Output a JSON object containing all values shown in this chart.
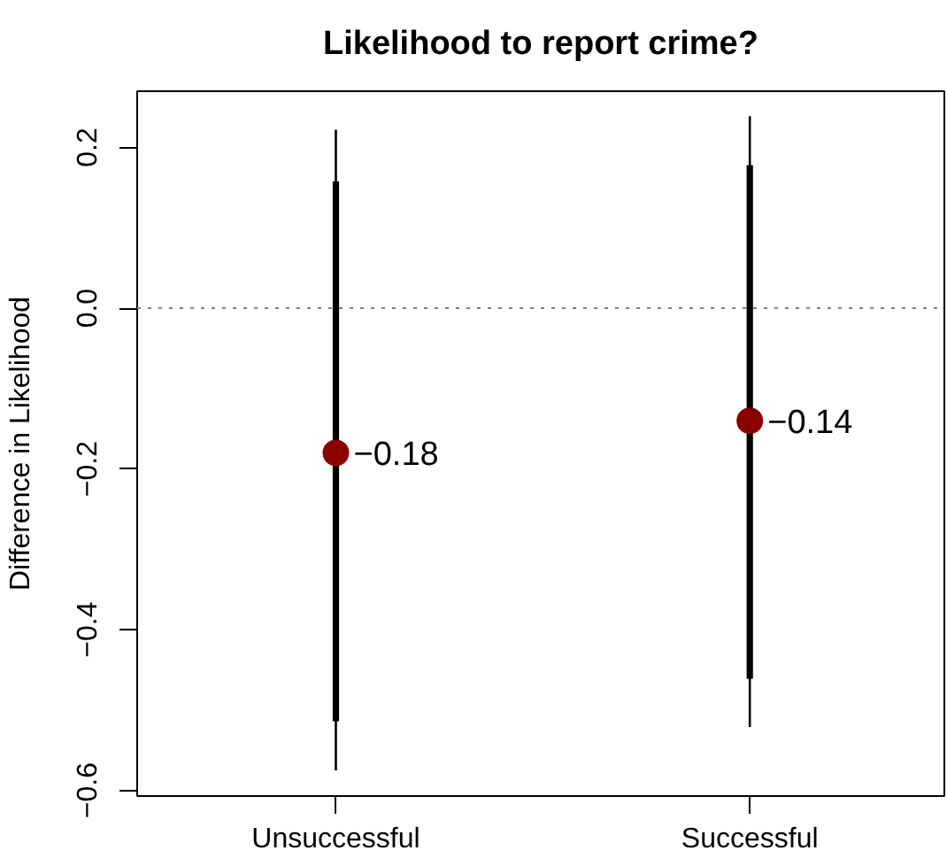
{
  "chart_data": {
    "type": "scatter",
    "title": "Likelihood to report crime?",
    "ylabel": "Difference in Likelihood",
    "categories": [
      "Unsuccessful",
      "Successful"
    ],
    "series": [
      {
        "type": "bar",
        "color": "#000000",
        "base": [
          -0.575,
          -0.521
        ],
        "values": [
          0.797,
          0.76
        ]
      },
      {
        "type": "bar",
        "color": "#000000",
        "base": [
          -0.514,
          -0.461
        ],
        "values": [
          0.672,
          0.639
        ]
      },
      {
        "color": "#8b0000",
        "values": [
          -0.18,
          -0.14
        ],
        "value_labels": [
          "−0.18",
          "−0.14"
        ]
      }
    ],
    "ylim": [
      -0.607,
      0.27
    ],
    "yticks": [
      {
        "value": -0.6,
        "label": "−0.6"
      },
      {
        "value": -0.4,
        "label": "−0.4"
      },
      {
        "value": -0.2,
        "label": "−0.2"
      },
      {
        "value": 0.0,
        "label": "0.0"
      },
      {
        "value": 0.2,
        "label": "0.2"
      }
    ],
    "ref_lines": [
      {
        "axis": "y",
        "value": 0,
        "color": "#808080",
        "line_style": "dotted"
      }
    ],
    "grid": false,
    "marker": "circle"
  }
}
